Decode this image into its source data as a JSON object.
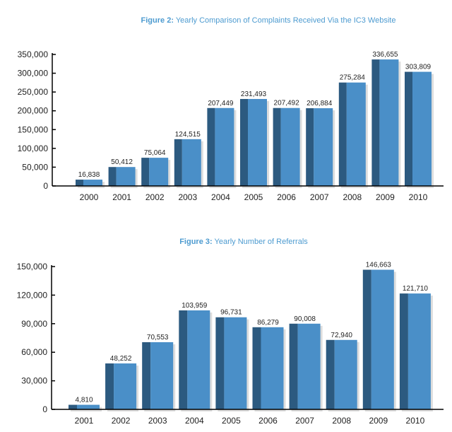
{
  "colors": {
    "bar_front": "#4a8fc8",
    "bar_side": "#2c5a80",
    "title": "#4d9bd0"
  },
  "chart_data": [
    {
      "type": "bar",
      "title_prefix": "Figure 2:",
      "title": "Yearly Comparison of Complaints Received Via the IC3 Website",
      "categories": [
        "2000",
        "2001",
        "2002",
        "2003",
        "2004",
        "2005",
        "2006",
        "2007",
        "2008",
        "2009",
        "2010"
      ],
      "values": [
        16838,
        50412,
        75064,
        124515,
        207449,
        231493,
        207492,
        206884,
        275284,
        336655,
        303809
      ],
      "data_labels": [
        "16,838",
        "50,412",
        "75,064",
        "124,515",
        "207,449",
        "231,493",
        "207,492",
        "206,884",
        "275,284",
        "336,655",
        "303,809"
      ],
      "yticks": [
        "0",
        "50,000",
        "100,000",
        "150,000",
        "200,000",
        "250,000",
        "300,000",
        "350,000"
      ],
      "ylim": [
        0,
        350000
      ],
      "grid": false
    },
    {
      "type": "bar",
      "title_prefix": "Figure 3:",
      "title": "Yearly Number of Referrals",
      "categories": [
        "2001",
        "2002",
        "2003",
        "2004",
        "2005",
        "2006",
        "2007",
        "2008",
        "2009",
        "2010"
      ],
      "values": [
        4810,
        48252,
        70553,
        103959,
        96731,
        86279,
        90008,
        72940,
        146663,
        121710
      ],
      "data_labels": [
        "4,810",
        "48,252",
        "70,553",
        "103,959",
        "96,731",
        "86,279",
        "90,008",
        "72,940",
        "146,663",
        "121,710"
      ],
      "yticks": [
        "0",
        "30,000",
        "60,000",
        "90,000",
        "120,000",
        "150,000"
      ],
      "ylim": [
        0,
        150000
      ],
      "grid": false
    }
  ]
}
